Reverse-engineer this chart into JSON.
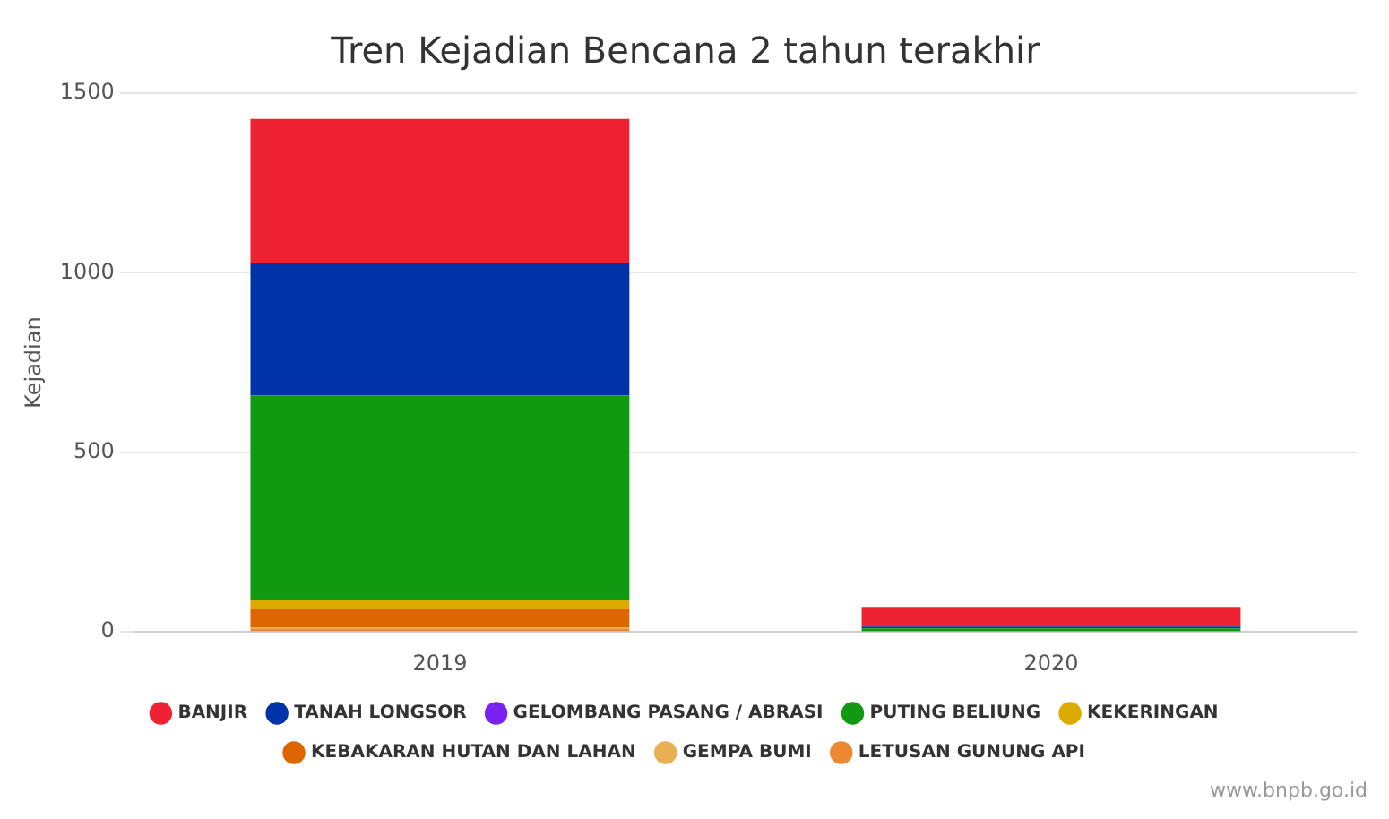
{
  "chart_data": {
    "type": "bar",
    "title": "Tren Kejadian Bencana 2 tahun terakhir",
    "ylabel": "Kejadian",
    "categories": [
      "2019",
      "2020"
    ],
    "stacked": true,
    "ylim": [
      0,
      1500
    ],
    "yticks": [
      0,
      500,
      1000,
      1500
    ],
    "grid": "y",
    "legend": "bottom",
    "annotations": [
      "www.bnpb.go.id"
    ],
    "series": [
      {
        "name": "LETUSAN GUNUNG API",
        "color": "#ee8833",
        "values": [
          8,
          0
        ]
      },
      {
        "name": "GEMPA BUMI",
        "color": "#e8b050",
        "values": [
          5,
          1
        ]
      },
      {
        "name": "KEBAKARAN HUTAN DAN LAHAN",
        "color": "#dd6600",
        "values": [
          50,
          1
        ]
      },
      {
        "name": "KEKERINGAN",
        "color": "#ddaa00",
        "values": [
          25,
          0
        ]
      },
      {
        "name": "PUTING BELIUNG",
        "color": "#119911",
        "values": [
          570,
          8
        ]
      },
      {
        "name": "GELOMBANG PASANG / ABRASI",
        "color": "#7722ee",
        "values": [
          null,
          0
        ]
      },
      {
        "name": "TANAH LONGSOR",
        "color": "#0033aa",
        "values": [
          370,
          5
        ]
      },
      {
        "name": "BANJIR",
        "color": "#ee2233",
        "values": [
          400,
          55
        ]
      }
    ]
  }
}
